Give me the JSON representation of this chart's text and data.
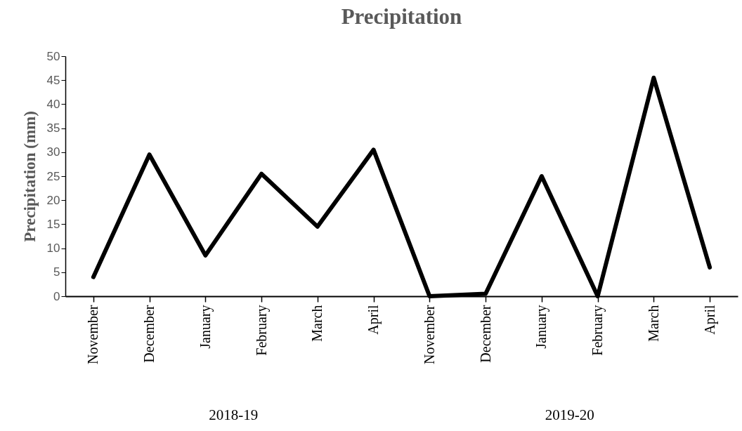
{
  "chart_data": {
    "type": "line",
    "title": "Precipitation",
    "ylabel": "Precipitation  (mm)",
    "categories": [
      "November",
      "December",
      "January",
      "February",
      "March",
      "April",
      "November",
      "December",
      "January",
      "February",
      "March",
      "April"
    ],
    "values": [
      4,
      29.5,
      8.5,
      25.5,
      14.5,
      30.5,
      0,
      0.5,
      25,
      0,
      45.5,
      6
    ],
    "color": "#000000",
    "line_style": "solid",
    "ylim": [
      0,
      50
    ],
    "yticks": [
      0,
      5,
      10,
      15,
      20,
      25,
      30,
      35,
      40,
      45,
      50
    ],
    "grid": false,
    "annotations": [
      "2018-19",
      "2019-20"
    ]
  }
}
